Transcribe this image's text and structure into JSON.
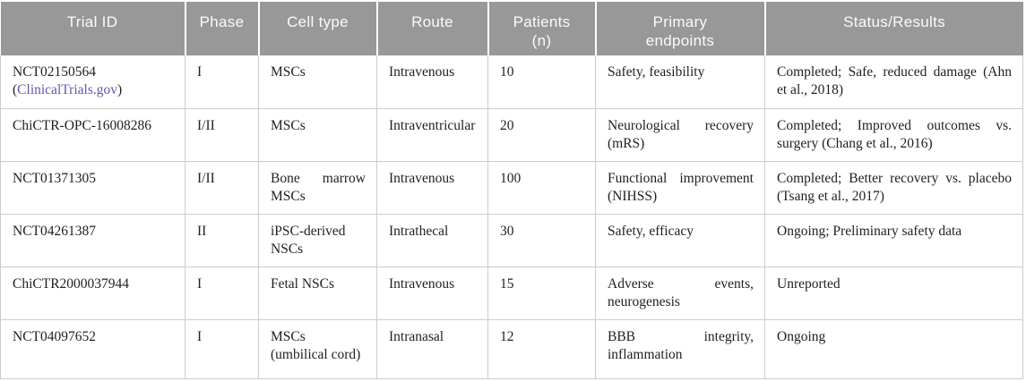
{
  "colors": {
    "header_bg": "#989898",
    "header_text": "#fbfbfb",
    "body_text": "#1f1f1f",
    "border": "#cccccc",
    "link": "#5c59ad"
  },
  "table": {
    "columns": [
      {
        "key": "trial_id",
        "label": "Trial ID"
      },
      {
        "key": "phase",
        "label": "Phase"
      },
      {
        "key": "cell_type",
        "label": "Cell type"
      },
      {
        "key": "route",
        "label": "Route"
      },
      {
        "key": "patients",
        "label": "Patients\n(n)"
      },
      {
        "key": "endpoints",
        "label": "Primary\nendpoints"
      },
      {
        "key": "status",
        "label": "Status/Results"
      }
    ],
    "rows": [
      {
        "trial_id": "NCT02150564",
        "registry_link": {
          "prefix": "(",
          "label": "ClinicalTrials.gov",
          "suffix": ")"
        },
        "phase": "I",
        "cell_type": "MSCs",
        "route": "Intravenous",
        "patients": "10",
        "endpoints": "Safety, feasibility",
        "status": "Completed; Safe, reduced damage (Ahn et al., 2018)"
      },
      {
        "trial_id": "ChiCTR-OPC-16008286",
        "phase": "I/II",
        "cell_type": "MSCs",
        "route": "Intraventricular",
        "patients": "20",
        "endpoints": "Neurological recovery (mRS)",
        "status": "Completed; Improved outcomes vs. surgery (Chang et al., 2016)"
      },
      {
        "trial_id": "NCT01371305",
        "phase": "I/II",
        "cell_type": "Bone marrow MSCs",
        "route": "Intravenous",
        "patients": "100",
        "endpoints": "Functional improvement (NIHSS)",
        "status": "Completed; Better recovery vs. placebo (Tsang et al., 2017)"
      },
      {
        "trial_id": "NCT04261387",
        "phase": "II",
        "cell_type": "iPSC-derived NSCs",
        "route": "Intrathecal",
        "patients": "30",
        "endpoints": "Safety, efficacy",
        "status": "Ongoing; Preliminary safety data"
      },
      {
        "trial_id": "ChiCTR2000037944",
        "phase": "I",
        "cell_type": "Fetal NSCs",
        "route": "Intravenous",
        "patients": "15",
        "endpoints": "Adverse events, neurogenesis",
        "status": "Unreported"
      },
      {
        "trial_id": "NCT04097652",
        "phase": "I",
        "cell_type": "MSCs (umbilical cord)",
        "route": "Intranasal",
        "patients": "12",
        "endpoints": "BBB integrity, inflammation",
        "status": "Ongoing"
      }
    ]
  }
}
